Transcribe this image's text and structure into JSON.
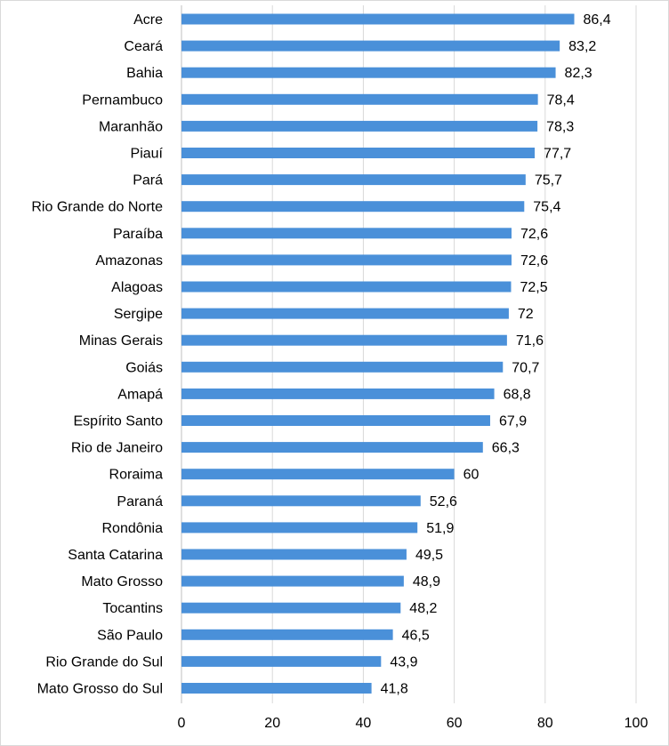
{
  "chart_data": {
    "type": "bar",
    "orientation": "horizontal",
    "title": "",
    "xlabel": "",
    "ylabel": "",
    "xlim": [
      0,
      100
    ],
    "x_ticks": [
      0,
      20,
      40,
      60,
      80,
      100
    ],
    "grid": true,
    "legend": "none",
    "bar_color": "#4a90d9",
    "categories": [
      "Acre",
      "Ceará",
      "Bahia",
      "Pernambuco",
      "Maranhão",
      "Piauí",
      "Pará",
      "Rio Grande do Norte",
      "Paraíba",
      "Amazonas",
      "Alagoas",
      "Sergipe",
      "Minas Gerais",
      "Goiás",
      "Amapá",
      "Espírito Santo",
      "Rio de Janeiro",
      "Roraima",
      "Paraná",
      "Rondônia",
      "Santa Catarina",
      "Mato Grosso",
      "Tocantins",
      "São Paulo",
      "Rio Grande do Sul",
      "Mato Grosso do Sul"
    ],
    "values": [
      86.4,
      83.2,
      82.3,
      78.4,
      78.3,
      77.7,
      75.7,
      75.4,
      72.6,
      72.6,
      72.5,
      72,
      71.6,
      70.7,
      68.8,
      67.9,
      66.3,
      60,
      52.6,
      51.9,
      49.5,
      48.9,
      48.2,
      46.5,
      43.9,
      41.8
    ],
    "value_labels": [
      "86,4",
      "83,2",
      "82,3",
      "78,4",
      "78,3",
      "77,7",
      "75,7",
      "75,4",
      "72,6",
      "72,6",
      "72,5",
      "72",
      "71,6",
      "70,7",
      "68,8",
      "67,9",
      "66,3",
      "60",
      "52,6",
      "51,9",
      "49,5",
      "48,9",
      "48,2",
      "46,5",
      "43,9",
      "41,8"
    ]
  }
}
